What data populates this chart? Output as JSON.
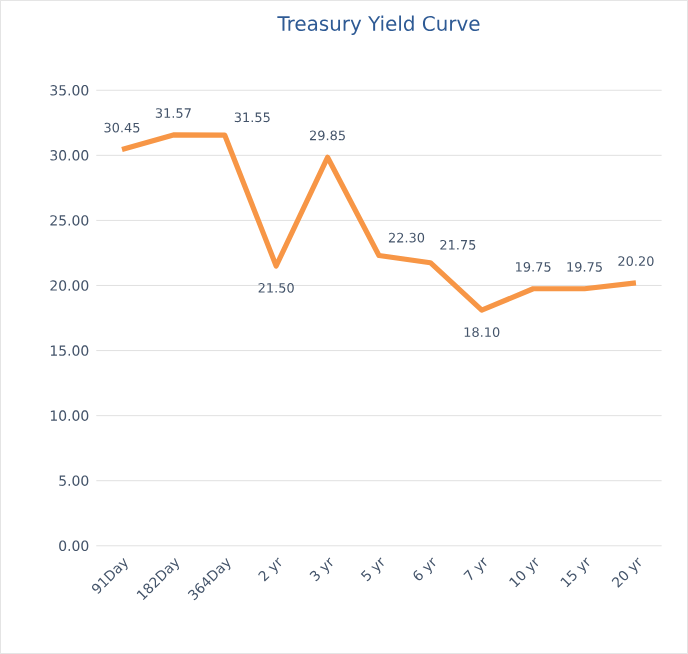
{
  "chart_data": {
    "type": "line",
    "title": "Treasury Yield Curve",
    "categories": [
      "91Day",
      "182Day",
      "364Day",
      "2 yr",
      "3 yr",
      "5 yr",
      "6 yr",
      "7 yr",
      "10 yr",
      "15 yr",
      "20 yr"
    ],
    "series": [
      {
        "color": "#f79646",
        "values": [
          30.45,
          31.57,
          31.55,
          21.5,
          29.85,
          22.3,
          21.75,
          18.1,
          19.75,
          19.75,
          20.2
        ],
        "value_labels": [
          "30.45",
          "31.57",
          "31.55",
          "21.50",
          "29.85",
          "22.30",
          "21.75",
          "18.10",
          "19.75",
          "19.75",
          "20.20"
        ]
      }
    ],
    "ylim": [
      0,
      35
    ],
    "yticks": [
      {
        "value": 0,
        "label": "0.00"
      },
      {
        "value": 5,
        "label": "5.00"
      },
      {
        "value": 10,
        "label": "10.00"
      },
      {
        "value": 15,
        "label": "15.00"
      },
      {
        "value": 20,
        "label": "20.00"
      },
      {
        "value": 25,
        "label": "25.00"
      },
      {
        "value": 30,
        "label": "30.00"
      },
      {
        "value": 35,
        "label": "35.00"
      }
    ],
    "grid": "y",
    "marker": "none",
    "line_style": "solid"
  }
}
